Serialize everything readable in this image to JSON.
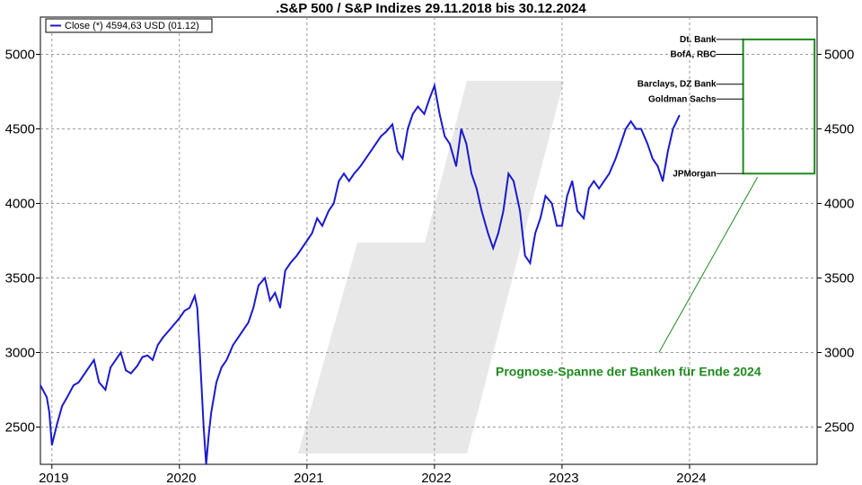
{
  "chart_data": {
    "type": "line",
    "title": ".S&P 500 / S&P Indizes 29.11.2018 bis 30.12.2024",
    "legend": {
      "label": "Close (*) 4594,63 USD (01.12)",
      "placement": "top-left"
    },
    "ylim": [
      2250,
      5250
    ],
    "yticks": [
      2500,
      3000,
      3500,
      4000,
      4500,
      5000
    ],
    "xlim": [
      2018.91,
      2025.0
    ],
    "xticks": [
      {
        "value": 2019.0,
        "label": "2019"
      },
      {
        "value": 2020.0,
        "label": "2020"
      },
      {
        "value": 2021.0,
        "label": "2021"
      },
      {
        "value": 2022.0,
        "label": "2022"
      },
      {
        "value": 2023.0,
        "label": "2023"
      },
      {
        "value": 2024.0,
        "label": "2024"
      }
    ],
    "grid": true,
    "series": [
      {
        "name": "Close (*)",
        "color": "#1a1acc",
        "x": [
          2018.91,
          2018.96,
          2018.98,
          2019.0,
          2019.04,
          2019.08,
          2019.12,
          2019.17,
          2019.21,
          2019.25,
          2019.29,
          2019.33,
          2019.37,
          2019.42,
          2019.46,
          2019.5,
          2019.54,
          2019.58,
          2019.62,
          2019.67,
          2019.71,
          2019.75,
          2019.79,
          2019.83,
          2019.87,
          2019.92,
          2019.96,
          2020.0,
          2020.04,
          2020.08,
          2020.12,
          2020.14,
          2020.16,
          2020.19,
          2020.21,
          2020.23,
          2020.25,
          2020.29,
          2020.33,
          2020.37,
          2020.42,
          2020.46,
          2020.5,
          2020.54,
          2020.58,
          2020.62,
          2020.67,
          2020.71,
          2020.75,
          2020.79,
          2020.83,
          2020.87,
          2020.92,
          2020.96,
          2021.0,
          2021.04,
          2021.08,
          2021.12,
          2021.17,
          2021.21,
          2021.25,
          2021.29,
          2021.33,
          2021.37,
          2021.42,
          2021.46,
          2021.5,
          2021.54,
          2021.58,
          2021.62,
          2021.67,
          2021.71,
          2021.75,
          2021.79,
          2021.83,
          2021.87,
          2021.92,
          2021.96,
          2022.0,
          2022.04,
          2022.08,
          2022.12,
          2022.17,
          2022.21,
          2022.25,
          2022.29,
          2022.33,
          2022.37,
          2022.42,
          2022.46,
          2022.5,
          2022.54,
          2022.58,
          2022.62,
          2022.67,
          2022.71,
          2022.75,
          2022.79,
          2022.83,
          2022.87,
          2022.92,
          2022.96,
          2023.0,
          2023.04,
          2023.08,
          2023.12,
          2023.17,
          2023.21,
          2023.25,
          2023.29,
          2023.33,
          2023.37,
          2023.42,
          2023.46,
          2023.5,
          2023.54,
          2023.58,
          2023.62,
          2023.67,
          2023.71,
          2023.75,
          2023.79,
          2023.83,
          2023.87,
          2023.92
        ],
        "values": [
          2780,
          2700,
          2600,
          2380,
          2520,
          2640,
          2700,
          2780,
          2800,
          2850,
          2900,
          2950,
          2800,
          2750,
          2900,
          2950,
          3000,
          2880,
          2860,
          2910,
          2970,
          2980,
          2950,
          3050,
          3100,
          3150,
          3190,
          3230,
          3280,
          3300,
          3380,
          3300,
          3000,
          2500,
          2250,
          2450,
          2600,
          2800,
          2900,
          2950,
          3050,
          3100,
          3150,
          3200,
          3300,
          3450,
          3500,
          3350,
          3400,
          3300,
          3550,
          3600,
          3650,
          3700,
          3750,
          3800,
          3900,
          3850,
          3950,
          4000,
          4150,
          4200,
          4150,
          4200,
          4250,
          4300,
          4350,
          4400,
          4450,
          4480,
          4530,
          4350,
          4300,
          4500,
          4600,
          4650,
          4600,
          4700,
          4790,
          4600,
          4450,
          4400,
          4250,
          4500,
          4400,
          4200,
          4100,
          3950,
          3800,
          3700,
          3800,
          3950,
          4200,
          4150,
          3950,
          3650,
          3600,
          3800,
          3900,
          4050,
          4000,
          3850,
          3850,
          4050,
          4150,
          3950,
          3900,
          4100,
          4150,
          4100,
          4150,
          4200,
          4300,
          4400,
          4500,
          4550,
          4500,
          4500,
          4400,
          4300,
          4250,
          4150,
          4350,
          4500,
          4590
        ]
      }
    ],
    "forecast_band": {
      "low": 4200,
      "high": 5100,
      "x_start": 2024.42,
      "x_end": 2024.98,
      "color": "#1e8a1e",
      "banks": [
        {
          "label": "Dt. Bank",
          "value": 5100
        },
        {
          "label": "BofA, RBC",
          "value": 5000
        },
        {
          "label": "Barclays, DZ Bank",
          "value": 4800
        },
        {
          "label": "Goldman Sachs",
          "value": 4700
        },
        {
          "label": "JPMorgan",
          "value": 4200
        }
      ],
      "annotation": "Prognose-Spanne der Banken für Ende 2024"
    }
  }
}
